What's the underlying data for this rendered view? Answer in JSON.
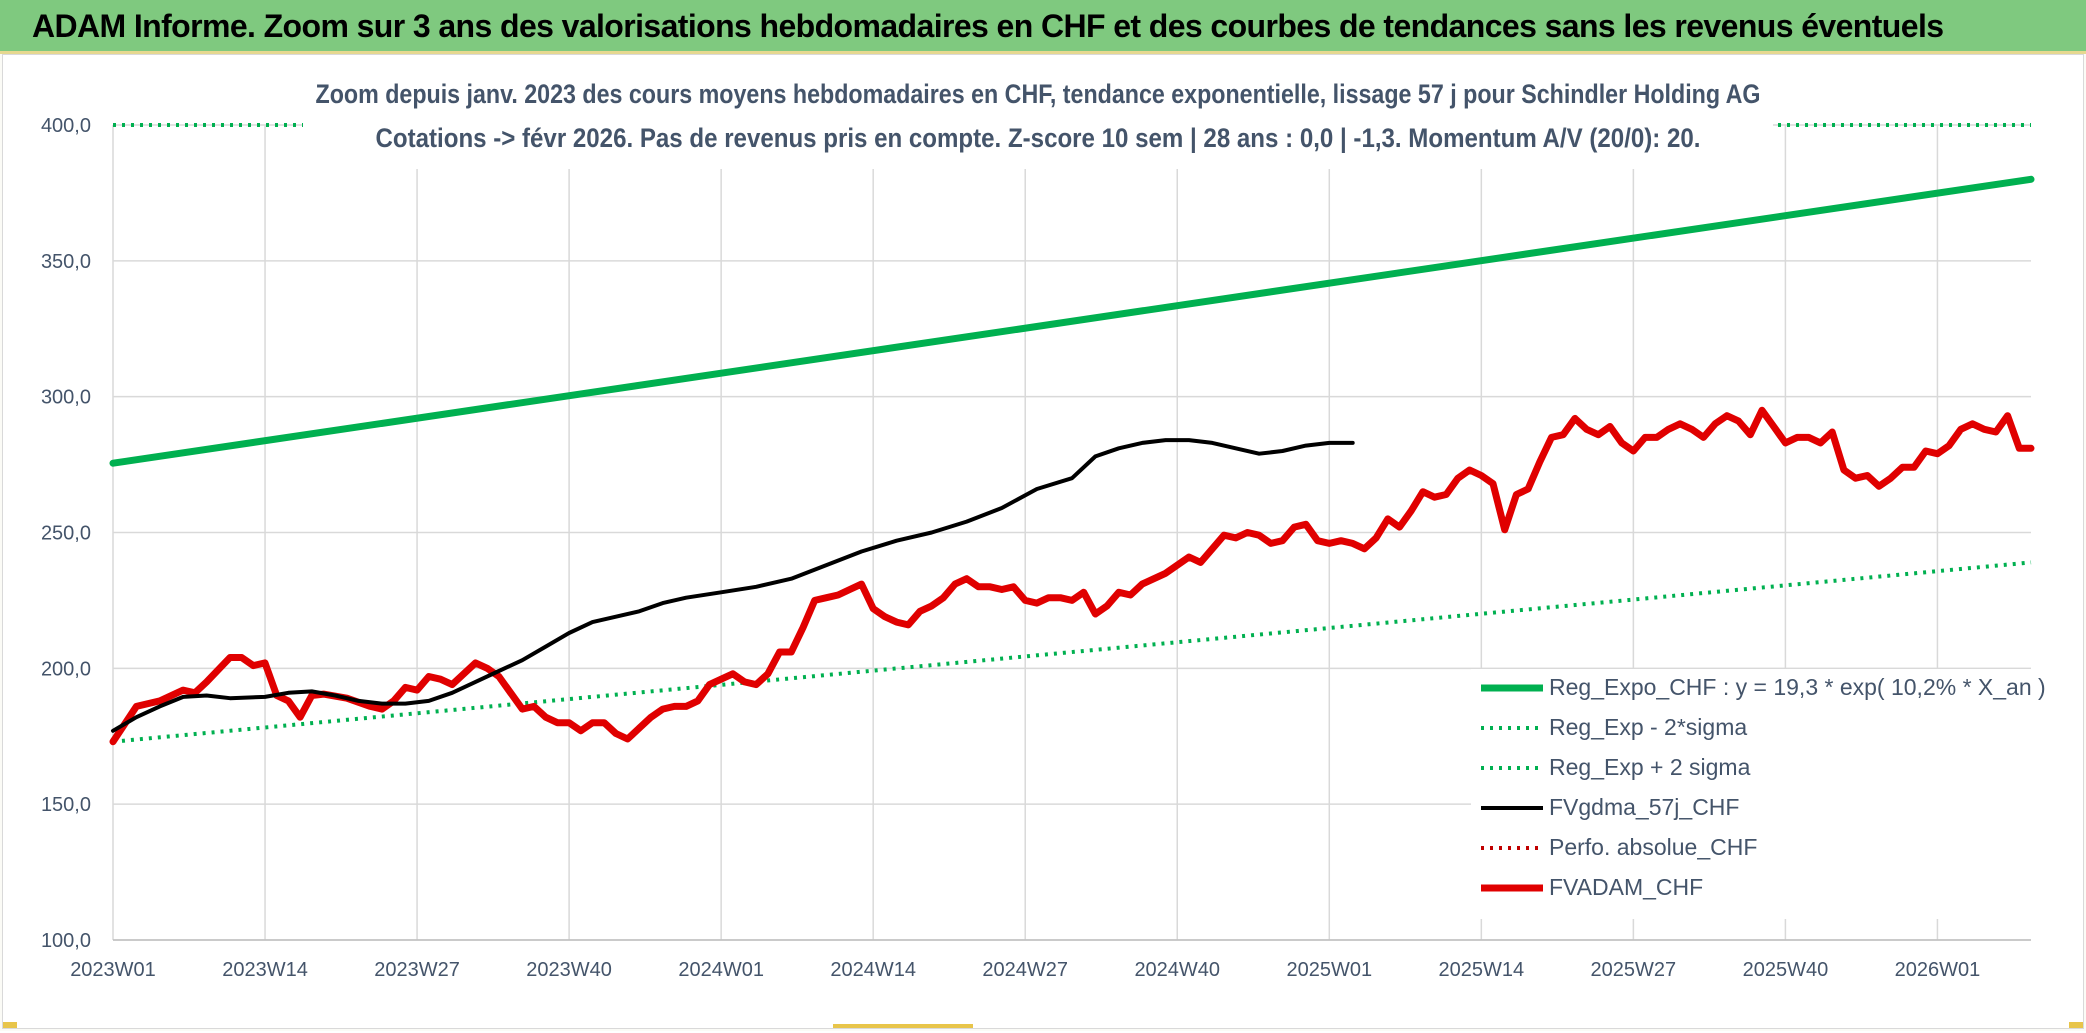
{
  "banner": {
    "title": "ADAM Informe. Zoom sur 3 ans des valorisations hebdomadaires en CHF et des courbes de tendances sans les revenus éventuels"
  },
  "chart_data": {
    "type": "line",
    "title_line1": "Zoom depuis janv. 2023 des cours moyens hebdomadaires en CHF, tendance exponentielle, lissage 57 j pour Schindler Holding AG",
    "title_line2": "Cotations -> févr 2026. Pas de revenus pris en compte. Z-score 10 sem | 28 ans : 0,0 | -1,3. Momentum A/V (20/0): 20.",
    "xlabel": "",
    "ylabel": "",
    "ylim": [
      100,
      400
    ],
    "yticks": [
      "100,0",
      "150,0",
      "200,0",
      "250,0",
      "300,0",
      "350,0",
      "400,0"
    ],
    "ytick_values": [
      100,
      150,
      200,
      250,
      300,
      350,
      400
    ],
    "xticks": [
      "2023W01",
      "2023W14",
      "2023W27",
      "2023W40",
      "2024W01",
      "2024W14",
      "2024W27",
      "2024W40",
      "2025W01",
      "2025W14",
      "2025W27",
      "2025W40",
      "2026W01"
    ],
    "xtick_week_index": [
      0,
      13,
      26,
      39,
      52,
      65,
      78,
      91,
      104,
      117,
      130,
      143,
      156
    ],
    "x_week_range": [
      0,
      164
    ],
    "grid": true,
    "legend_position": "bottom-right",
    "series": [
      {
        "name": "Reg_Expo_CHF : y = 19,3 * exp( 10,2% *  X_an )",
        "color": "#00b050",
        "style": "solid-thick",
        "start": [
          0,
          275.5
        ],
        "end": [
          164,
          380
        ]
      },
      {
        "name": "Reg_Exp - 2*sigma",
        "color": "#00b050",
        "style": "dotted",
        "start": [
          0,
          173
        ],
        "end": [
          164,
          239
        ]
      },
      {
        "name": "Reg_Exp + 2 sigma",
        "color": "#00b050",
        "style": "dotted",
        "start": [
          0,
          400
        ],
        "end": [
          164,
          400
        ],
        "note": "upper band clipped at axis maximum"
      },
      {
        "name": "FVgdma_57j_CHF",
        "color": "#000000",
        "style": "solid",
        "points": [
          [
            0,
            177
          ],
          [
            4,
            182
          ],
          [
            8,
            186
          ],
          [
            12,
            189.5
          ],
          [
            16,
            190
          ],
          [
            20,
            189
          ],
          [
            26,
            189.5
          ],
          [
            30,
            191
          ],
          [
            34,
            191.5
          ],
          [
            38,
            190
          ],
          [
            42,
            188
          ],
          [
            46,
            187
          ],
          [
            50,
            187
          ],
          [
            54,
            188
          ],
          [
            58,
            191
          ],
          [
            62,
            195
          ],
          [
            66,
            199
          ],
          [
            70,
            203
          ],
          [
            74,
            208
          ],
          [
            78,
            213
          ],
          [
            82,
            217
          ],
          [
            86,
            219
          ],
          [
            90,
            221
          ],
          [
            94,
            224
          ],
          [
            98,
            226
          ],
          [
            104,
            228
          ],
          [
            110,
            230
          ],
          [
            116,
            233
          ],
          [
            122,
            238
          ],
          [
            128,
            243
          ],
          [
            134,
            247
          ],
          [
            140,
            250
          ],
          [
            146,
            254
          ],
          [
            152,
            259
          ],
          [
            158,
            266
          ],
          [
            164,
            270
          ],
          [
            168,
            278
          ],
          [
            172,
            281
          ],
          [
            176,
            283
          ],
          [
            180,
            284
          ],
          [
            184,
            284
          ],
          [
            188,
            283
          ],
          [
            192,
            281
          ],
          [
            196,
            279
          ],
          [
            200,
            280
          ],
          [
            204,
            282
          ],
          [
            208,
            283
          ],
          [
            212,
            283
          ]
        ],
        "points_note": "x in half-week steps of 0.5 week (x/2 = week index)"
      },
      {
        "name": "Perfo. absolue_CHF",
        "color": "#c00000",
        "style": "dotted",
        "points": []
      },
      {
        "name": "FVADAM_CHF",
        "color": "#e00000",
        "style": "solid-thick",
        "points": [
          [
            0,
            173
          ],
          [
            2,
            186
          ],
          [
            4,
            188
          ],
          [
            6,
            192
          ],
          [
            7,
            191
          ],
          [
            8,
            195
          ],
          [
            10,
            204
          ],
          [
            11,
            204
          ],
          [
            12,
            201
          ],
          [
            13,
            202
          ],
          [
            14,
            190
          ],
          [
            15,
            188
          ],
          [
            16,
            182
          ],
          [
            17,
            190
          ],
          [
            18,
            190.5
          ],
          [
            20,
            189
          ],
          [
            22,
            186
          ],
          [
            23,
            185
          ],
          [
            24,
            188
          ],
          [
            25,
            193
          ],
          [
            26,
            192
          ],
          [
            27,
            197
          ],
          [
            28,
            196
          ],
          [
            29,
            194
          ],
          [
            31,
            202
          ],
          [
            32,
            200
          ],
          [
            33,
            197
          ],
          [
            35,
            185
          ],
          [
            36,
            186
          ],
          [
            37,
            182
          ],
          [
            38,
            180
          ],
          [
            39,
            180
          ],
          [
            40,
            177
          ],
          [
            41,
            180
          ],
          [
            42,
            180
          ],
          [
            43,
            176
          ],
          [
            44,
            174
          ],
          [
            45,
            178
          ],
          [
            46,
            182
          ],
          [
            47,
            185
          ],
          [
            48,
            186
          ],
          [
            49,
            186
          ],
          [
            50,
            188
          ],
          [
            51,
            194
          ],
          [
            52,
            196
          ],
          [
            53,
            198
          ],
          [
            54,
            195
          ],
          [
            55,
            194
          ],
          [
            56,
            198
          ],
          [
            57,
            206
          ],
          [
            58,
            206
          ],
          [
            59,
            215
          ],
          [
            60,
            225
          ],
          [
            61,
            226
          ],
          [
            62,
            227
          ],
          [
            63,
            229
          ],
          [
            64,
            231
          ],
          [
            65,
            222
          ],
          [
            66,
            219
          ],
          [
            67,
            217
          ],
          [
            68,
            216
          ],
          [
            69,
            221
          ],
          [
            70,
            223
          ],
          [
            71,
            226
          ],
          [
            72,
            231
          ],
          [
            73,
            233
          ],
          [
            74,
            230
          ],
          [
            75,
            230
          ],
          [
            76,
            229
          ],
          [
            77,
            230
          ],
          [
            78,
            225
          ],
          [
            79,
            224
          ],
          [
            80,
            226
          ],
          [
            81,
            226
          ],
          [
            82,
            225
          ],
          [
            83,
            228
          ],
          [
            84,
            220
          ],
          [
            85,
            223
          ],
          [
            86,
            228
          ],
          [
            87,
            227
          ],
          [
            88,
            231
          ],
          [
            89,
            233
          ],
          [
            90,
            235
          ],
          [
            91,
            238
          ],
          [
            92,
            241
          ],
          [
            93,
            239
          ],
          [
            94,
            244
          ],
          [
            95,
            249
          ],
          [
            96,
            248
          ],
          [
            97,
            250
          ],
          [
            98,
            249
          ],
          [
            99,
            246
          ],
          [
            100,
            247
          ],
          [
            101,
            252
          ],
          [
            102,
            253
          ],
          [
            103,
            247
          ],
          [
            104,
            246
          ],
          [
            105,
            247
          ],
          [
            106,
            246
          ],
          [
            107,
            244
          ],
          [
            108,
            248
          ],
          [
            109,
            255
          ],
          [
            110,
            252
          ],
          [
            111,
            258
          ],
          [
            112,
            265
          ],
          [
            113,
            263
          ],
          [
            114,
            264
          ],
          [
            115,
            270
          ],
          [
            116,
            273
          ],
          [
            117,
            271
          ],
          [
            118,
            268
          ],
          [
            119,
            251
          ],
          [
            120,
            264
          ],
          [
            121,
            266
          ],
          [
            122,
            276
          ],
          [
            123,
            285
          ],
          [
            124,
            286
          ],
          [
            125,
            292
          ],
          [
            126,
            288
          ],
          [
            127,
            286
          ],
          [
            128,
            289
          ],
          [
            129,
            283
          ],
          [
            130,
            280
          ],
          [
            131,
            285
          ],
          [
            132,
            285
          ],
          [
            133,
            288
          ],
          [
            134,
            290
          ],
          [
            135,
            288
          ],
          [
            136,
            285
          ],
          [
            137,
            290
          ],
          [
            138,
            293
          ],
          [
            139,
            291
          ],
          [
            140,
            286
          ],
          [
            141,
            295
          ],
          [
            142,
            289
          ],
          [
            143,
            283
          ],
          [
            144,
            285
          ],
          [
            145,
            285
          ],
          [
            146,
            283
          ],
          [
            147,
            287
          ],
          [
            148,
            273
          ],
          [
            149,
            270
          ],
          [
            150,
            271
          ],
          [
            151,
            267
          ],
          [
            152,
            270
          ],
          [
            153,
            274
          ],
          [
            154,
            274
          ],
          [
            155,
            280
          ],
          [
            156,
            279
          ],
          [
            157,
            282
          ],
          [
            158,
            288
          ],
          [
            159,
            290
          ],
          [
            160,
            288
          ],
          [
            161,
            287
          ],
          [
            162,
            293
          ],
          [
            163,
            281
          ],
          [
            164,
            281
          ]
        ],
        "points_note": "[week_index, value]"
      }
    ]
  },
  "legend": [
    {
      "label": "Reg_Expo_CHF : y = 19,3 * exp( 10,2% *  X_an )",
      "color": "#00b050",
      "style": "solid-thick"
    },
    {
      "label": "Reg_Exp - 2*sigma",
      "color": "#00b050",
      "style": "dotted"
    },
    {
      "label": "Reg_Exp + 2 sigma",
      "color": "#00b050",
      "style": "dotted"
    },
    {
      "label": "FVgdma_57j_CHF",
      "color": "#000000",
      "style": "solid"
    },
    {
      "label": "Perfo. absolue_CHF",
      "color": "#c00000",
      "style": "dotted"
    },
    {
      "label": "FVADAM_CHF",
      "color": "#e00000",
      "style": "solid-thick"
    }
  ]
}
